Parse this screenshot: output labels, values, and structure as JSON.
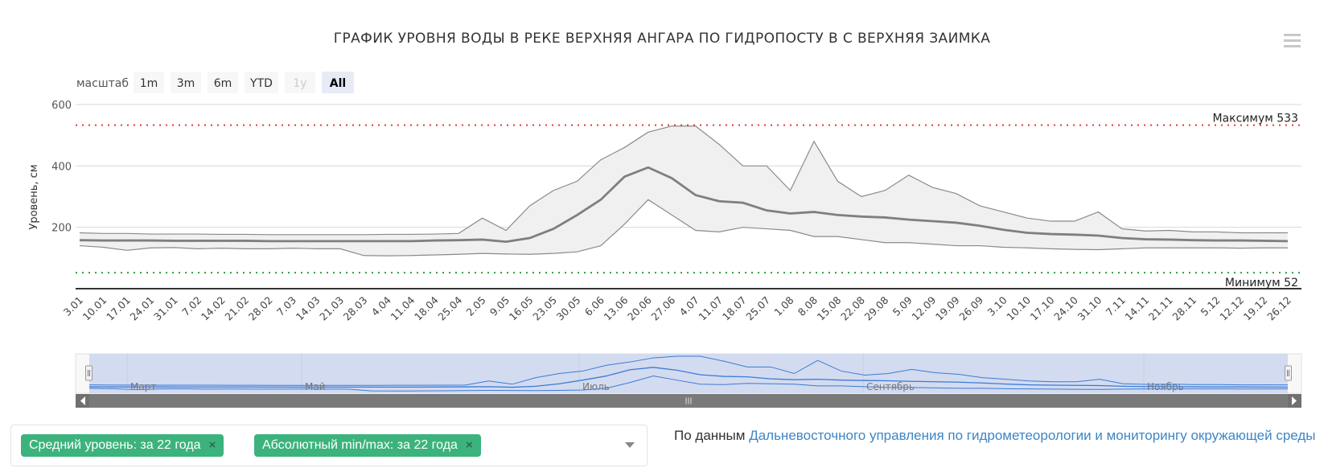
{
  "title": "ГРАФИК УРОВНЯ ВОДЫ В РЕКЕ ВЕРХНЯЯ АНГАРА ПО ГИДРОПОСТУ В С ВЕРХНЯЯ ЗАИМКА",
  "range_selector": {
    "label": "масштаб",
    "buttons": [
      {
        "label": "1m",
        "state": "normal"
      },
      {
        "label": "3m",
        "state": "normal"
      },
      {
        "label": "6m",
        "state": "normal"
      },
      {
        "label": "YTD",
        "state": "normal"
      },
      {
        "label": "1y",
        "state": "disabled"
      },
      {
        "label": "All",
        "state": "selected"
      }
    ]
  },
  "menu_icon": "hamburger-menu-icon",
  "chart_data": {
    "type": "area",
    "ylabel": "Уровень, см",
    "ylim": [
      0,
      600
    ],
    "yticks": [
      "200",
      "400",
      "600"
    ],
    "grid": true,
    "x_tick_labels": [
      "3.01",
      "10.01",
      "17.01",
      "24.01",
      "31.01",
      "7.02",
      "14.02",
      "21.02",
      "28.02",
      "7.03",
      "14.03",
      "21.03",
      "28.03",
      "4.04",
      "11.04",
      "18.04",
      "25.04",
      "2.05",
      "9.05",
      "16.05",
      "23.05",
      "30.05",
      "6.06",
      "13.06",
      "20.06",
      "27.06",
      "4.07",
      "11.07",
      "18.07",
      "25.07",
      "1.08",
      "8.08",
      "15.08",
      "22.08",
      "29.08",
      "5.09",
      "12.09",
      "19.09",
      "26.09",
      "3.10",
      "10.10",
      "17.10",
      "24.10",
      "31.10",
      "7.11",
      "14.11",
      "21.11",
      "28.11",
      "5.12",
      "12.12",
      "19.12",
      "26.12"
    ],
    "plot_lines": [
      {
        "label": "Максимум 533",
        "value": 533,
        "color": "#e53935"
      },
      {
        "label": "Минимум 52",
        "value": 52,
        "color": "#2e9e3a"
      }
    ],
    "series": [
      {
        "name": "Средний уровень: за 22 года",
        "color": "#7f7f7f",
        "points": [
          [
            "3.01",
            158
          ],
          [
            "10.01",
            157
          ],
          [
            "17.01",
            157
          ],
          [
            "24.01",
            157
          ],
          [
            "31.01",
            156
          ],
          [
            "7.02",
            156
          ],
          [
            "14.02",
            156
          ],
          [
            "21.02",
            156
          ],
          [
            "28.02",
            155
          ],
          [
            "7.03",
            155
          ],
          [
            "14.03",
            155
          ],
          [
            "21.03",
            155
          ],
          [
            "28.03",
            155
          ],
          [
            "4.04",
            155
          ],
          [
            "11.04",
            155
          ],
          [
            "18.04",
            157
          ],
          [
            "25.04",
            158
          ],
          [
            "2.05",
            160
          ],
          [
            "9.05",
            153
          ],
          [
            "16.05",
            165
          ],
          [
            "23.05",
            195
          ],
          [
            "30.05",
            240
          ],
          [
            "6.06",
            290
          ],
          [
            "13.06",
            365
          ],
          [
            "20.06",
            395
          ],
          [
            "27.06",
            360
          ],
          [
            "4.07",
            305
          ],
          [
            "11.07",
            285
          ],
          [
            "18.07",
            280
          ],
          [
            "25.07",
            255
          ],
          [
            "1.08",
            245
          ],
          [
            "8.08",
            250
          ],
          [
            "15.08",
            240
          ],
          [
            "22.08",
            235
          ],
          [
            "29.08",
            232
          ],
          [
            "5.09",
            225
          ],
          [
            "12.09",
            220
          ],
          [
            "19.09",
            215
          ],
          [
            "26.09",
            205
          ],
          [
            "3.10",
            192
          ],
          [
            "10.10",
            182
          ],
          [
            "17.10",
            178
          ],
          [
            "24.10",
            176
          ],
          [
            "31.10",
            173
          ],
          [
            "7.11",
            165
          ],
          [
            "14.11",
            161
          ],
          [
            "21.11",
            160
          ],
          [
            "28.11",
            158
          ],
          [
            "5.12",
            157
          ],
          [
            "12.12",
            157
          ],
          [
            "19.12",
            156
          ],
          [
            "26.12",
            155
          ]
        ]
      },
      {
        "name": "Абсолютный min/max: за 22 года",
        "color": "#8a8a8a",
        "fill": "#f0f0f0",
        "points": [
          [
            "3.01",
            140,
            182
          ],
          [
            "10.01",
            135,
            180
          ],
          [
            "17.01",
            125,
            180
          ],
          [
            "24.01",
            133,
            178
          ],
          [
            "31.01",
            134,
            178
          ],
          [
            "7.02",
            130,
            178
          ],
          [
            "14.02",
            132,
            177
          ],
          [
            "21.02",
            130,
            177
          ],
          [
            "28.02",
            130,
            176
          ],
          [
            "7.03",
            132,
            176
          ],
          [
            "14.03",
            130,
            176
          ],
          [
            "21.03",
            130,
            176
          ],
          [
            "28.03",
            108,
            176
          ],
          [
            "4.04",
            107,
            177
          ],
          [
            "11.04",
            108,
            177
          ],
          [
            "18.04",
            110,
            178
          ],
          [
            "25.04",
            112,
            180
          ],
          [
            "2.05",
            115,
            230
          ],
          [
            "9.05",
            113,
            190
          ],
          [
            "16.05",
            112,
            270
          ],
          [
            "23.05",
            115,
            320
          ],
          [
            "30.05",
            120,
            350
          ],
          [
            "6.06",
            140,
            420
          ],
          [
            "13.06",
            210,
            460
          ],
          [
            "20.06",
            290,
            510
          ],
          [
            "27.06",
            240,
            530
          ],
          [
            "4.07",
            190,
            530
          ],
          [
            "11.07",
            185,
            470
          ],
          [
            "18.07",
            200,
            400
          ],
          [
            "25.07",
            195,
            400
          ],
          [
            "1.08",
            190,
            320
          ],
          [
            "8.08",
            170,
            480
          ],
          [
            "15.08",
            170,
            350
          ],
          [
            "22.08",
            160,
            300
          ],
          [
            "29.08",
            150,
            320
          ],
          [
            "5.09",
            150,
            370
          ],
          [
            "12.09",
            145,
            330
          ],
          [
            "19.09",
            140,
            310
          ],
          [
            "26.09",
            140,
            270
          ],
          [
            "3.10",
            135,
            250
          ],
          [
            "10.10",
            133,
            230
          ],
          [
            "17.10",
            130,
            220
          ],
          [
            "24.10",
            128,
            220
          ],
          [
            "31.10",
            127,
            250
          ],
          [
            "7.11",
            130,
            195
          ],
          [
            "14.11",
            133,
            188
          ],
          [
            "21.11",
            133,
            190
          ],
          [
            "28.11",
            133,
            185
          ],
          [
            "5.12",
            133,
            185
          ],
          [
            "12.12",
            132,
            182
          ],
          [
            "19.12",
            133,
            182
          ],
          [
            "26.12",
            133,
            182
          ]
        ]
      }
    ]
  },
  "navigator": {
    "month_labels": [
      "Март",
      "Май",
      "Июль",
      "Сентябрь",
      "Ноябрь"
    ],
    "series_color": "#3b7bd4",
    "mask_color": "#cdd6ee"
  },
  "filters": {
    "tags": [
      {
        "label": "Средний уровень: за 22 года",
        "close": "×"
      },
      {
        "label": "Абсолютный min/max: за 22 года",
        "close": "×"
      }
    ],
    "dropdown_icon": "chevron-down-icon"
  },
  "source": {
    "prefix": "По данным",
    "link_text": "Дальневосточного управления по гидрометеорологии и мониторингу окружающей среды"
  },
  "colors": {
    "accent_green": "#3cb37c",
    "link_blue": "#3d86c6",
    "max_line": "#e53935",
    "min_line": "#2e9e3a"
  }
}
